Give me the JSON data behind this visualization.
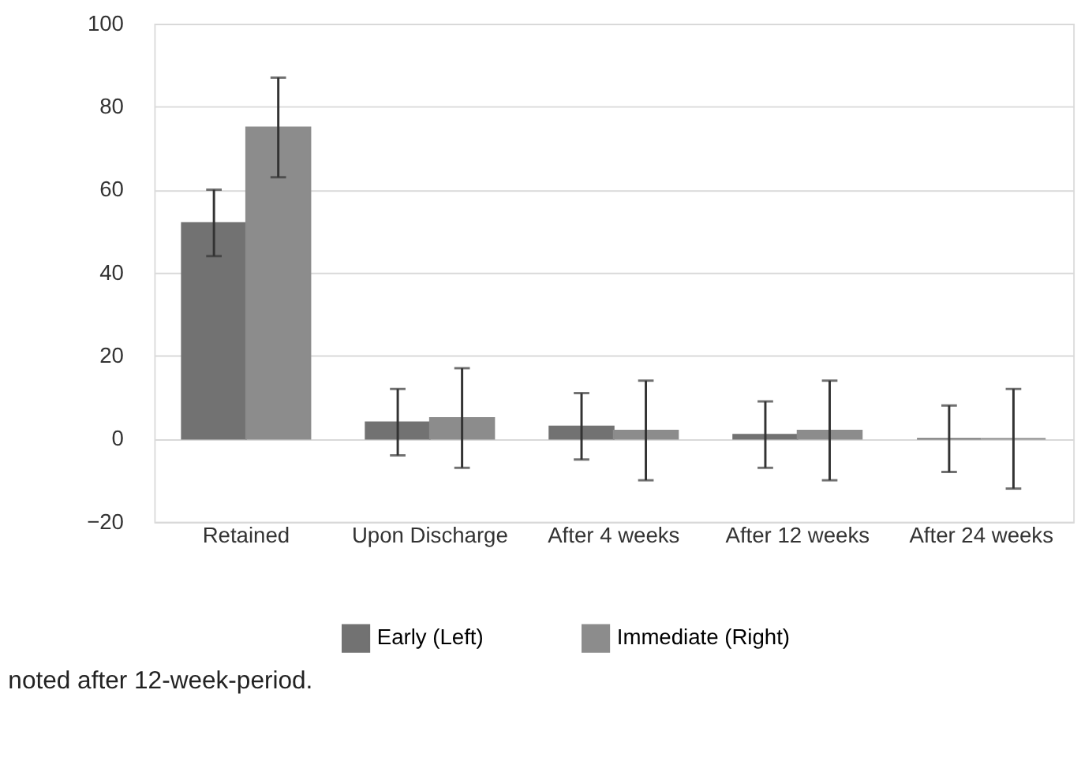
{
  "chart_data": {
    "type": "bar",
    "categories": [
      "Retained",
      "Upon Discharge",
      "After 4 weeks",
      "After 12 weeks",
      "After 24 weeks"
    ],
    "series": [
      {
        "name": "Early (Left)",
        "color": "#727272",
        "values": [
          52,
          4,
          3,
          1,
          0
        ],
        "errors": [
          [
            44,
            60
          ],
          [
            -4,
            12
          ],
          [
            -5,
            11
          ],
          [
            -7,
            9
          ],
          [
            -8,
            8
          ]
        ]
      },
      {
        "name": "Immediate (Right)",
        "color": "#8c8c8c",
        "values": [
          75,
          5,
          2,
          2,
          0
        ],
        "errors": [
          [
            63,
            87
          ],
          [
            -7,
            17
          ],
          [
            -10,
            14
          ],
          [
            -10,
            14
          ],
          [
            -12,
            12
          ]
        ]
      }
    ],
    "ylim": [
      -20,
      100
    ],
    "yticks": [
      -20,
      0,
      20,
      40,
      60,
      80,
      100
    ],
    "grid": "y",
    "legend": "bottom",
    "annotations": [
      "noted after 12-week-period."
    ]
  }
}
